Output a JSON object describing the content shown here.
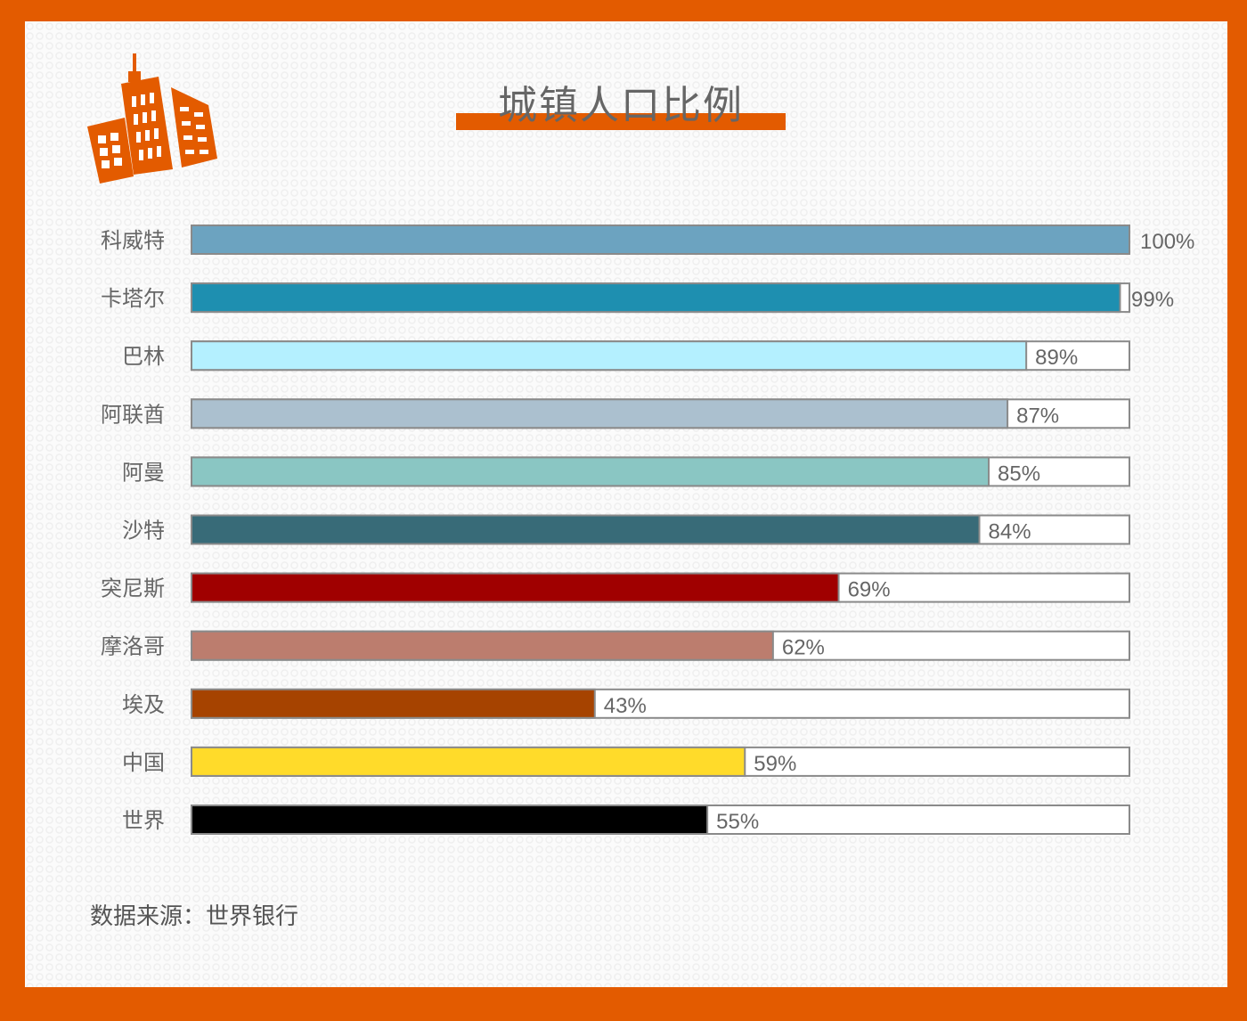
{
  "chart_data": {
    "type": "bar",
    "orientation": "horizontal",
    "title": "城镇人口比例",
    "categories": [
      "科威特",
      "卡塔尔",
      "巴林",
      "阿联酋",
      "阿曼",
      "沙特",
      "突尼斯",
      "摩洛哥",
      "埃及",
      "中国",
      "世界"
    ],
    "values": [
      100,
      99,
      89,
      87,
      85,
      84,
      69,
      62,
      43,
      59,
      55
    ],
    "data_labels": [
      "100%",
      "99%",
      "89%",
      "87%",
      "85%",
      "84%",
      "69%",
      "62%",
      "43%",
      "59%",
      "55%"
    ],
    "colors": [
      "#6CA3C0",
      "#1E8FB0",
      "#B4F0FF",
      "#ABC0CF",
      "#8AC6C3",
      "#386B78",
      "#A00000",
      "#BC7D6E",
      "#A64300",
      "#FFDB2A",
      "#000000"
    ],
    "xlim": [
      0,
      100
    ],
    "grid": false,
    "legend": "none"
  },
  "source": "数据来源：世界银行",
  "accent_color": "#E35B00",
  "logo_icon": "buildings-icon"
}
